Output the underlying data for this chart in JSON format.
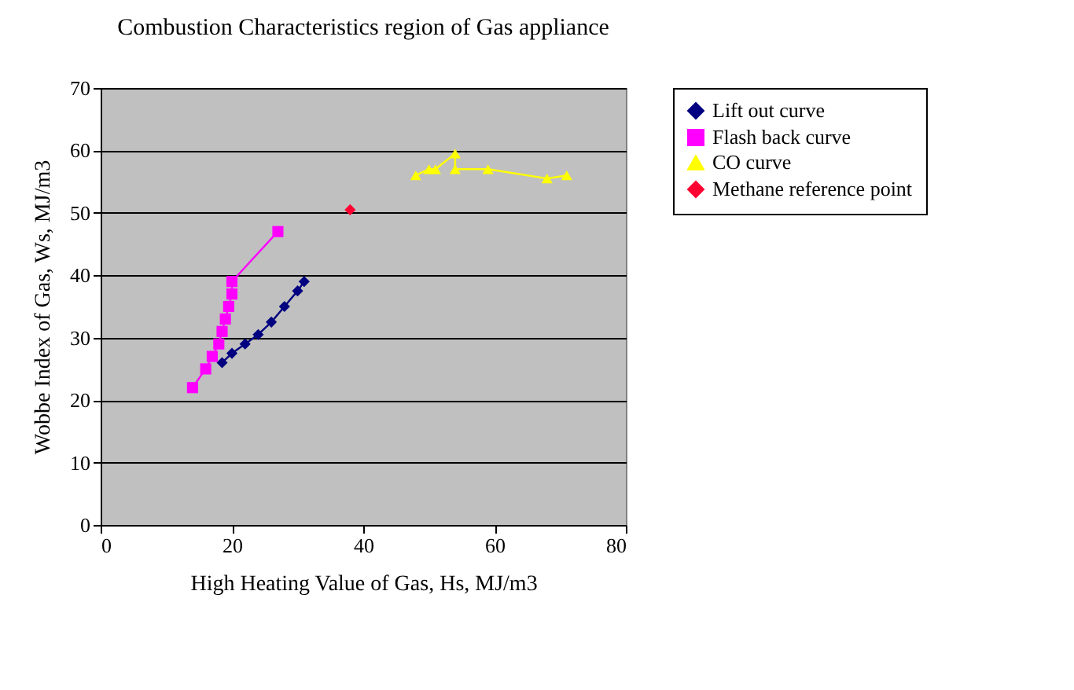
{
  "chart_data": {
    "type": "line",
    "title": "Combustion Characteristics region of Gas appliance",
    "xlabel": "High Heating Value of Gas, Hs, MJ/m3",
    "ylabel": "Wobbe Index of Gas, Ws, MJ/m3",
    "xlim": [
      0,
      80
    ],
    "xticks": [
      0,
      20,
      40,
      60,
      80
    ],
    "ylim": [
      0,
      70
    ],
    "yticks": [
      0,
      10,
      20,
      30,
      40,
      50,
      60,
      70
    ],
    "grid": "y",
    "legend": "right",
    "series": [
      {
        "name": "Lift out curve",
        "color": "#000080",
        "marker": "diamond",
        "x": [
          18.5,
          20,
          22,
          24,
          26,
          28,
          30,
          31
        ],
        "values": [
          26,
          27.5,
          29,
          30.5,
          32.5,
          35,
          37.5,
          39
        ]
      },
      {
        "name": "Flash back curve",
        "color": "#ff00ff",
        "marker": "square",
        "x": [
          14,
          16,
          17,
          18,
          18.5,
          19,
          19.5,
          20,
          20,
          27
        ],
        "values": [
          22,
          25,
          27,
          29,
          31,
          33,
          35,
          37,
          39,
          47
        ]
      },
      {
        "name": "CO curve",
        "color": "#ffff00",
        "marker": "triangle",
        "x": [
          48,
          50,
          51,
          54,
          54,
          59,
          68,
          71
        ],
        "values": [
          56,
          57,
          57,
          59.5,
          57,
          57,
          55.5,
          56
        ]
      },
      {
        "name": "Methane reference point",
        "color": "#ff0033",
        "marker": "diamond",
        "x": [
          38
        ],
        "values": [
          50.5
        ]
      }
    ]
  }
}
